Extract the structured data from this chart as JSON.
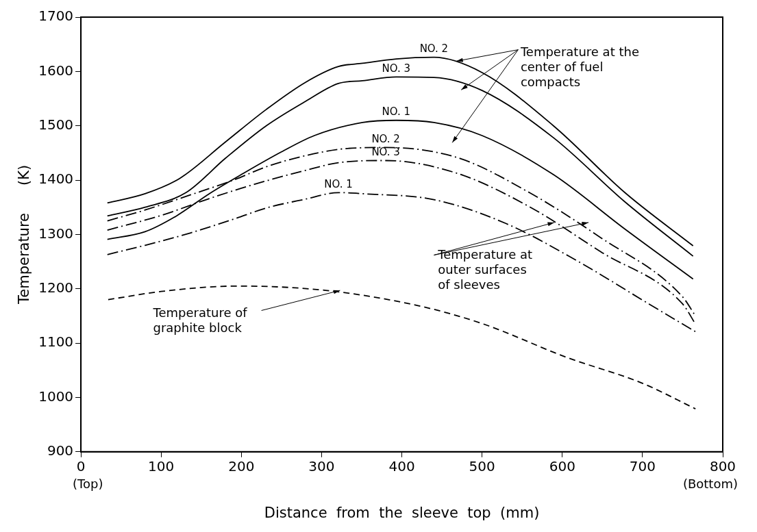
{
  "chart_data": {
    "type": "line",
    "xlabel": "Distance  from  the  sleeve  top  (mm)",
    "ylabel": "Temperature      (K)",
    "xlim": [
      0,
      800
    ],
    "xticks": [
      0,
      100,
      200,
      300,
      400,
      500,
      600,
      700,
      800
    ],
    "ylim": [
      900,
      1700
    ],
    "yticks": [
      900,
      1000,
      1100,
      1200,
      1300,
      1400,
      1500,
      1600,
      1700
    ],
    "grid": false,
    "legend": false,
    "marker": "none",
    "series": [
      {
        "name": "NO. 2",
        "color": "#000000",
        "line_style": "solid",
        "x": [
          33,
          80,
          123,
          180,
          231,
          280,
          321,
          351,
          393,
          440,
          500,
          589,
          678,
          763
        ],
        "values": [
          1358,
          1375,
          1403,
          1470,
          1530,
          1580,
          1609,
          1615,
          1623,
          1626,
          1598,
          1500,
          1377,
          1279
        ]
      },
      {
        "name": "NO. 3",
        "color": "#000000",
        "line_style": "solid",
        "x": [
          33,
          80,
          131,
          180,
          231,
          280,
          321,
          351,
          393,
          440,
          500,
          589,
          678,
          763
        ],
        "values": [
          1334,
          1350,
          1377,
          1440,
          1500,
          1545,
          1578,
          1583,
          1590,
          1589,
          1565,
          1478,
          1360,
          1260
        ]
      },
      {
        "name": "NO. 1",
        "color": "#000000",
        "line_style": "solid",
        "x": [
          33,
          80,
          119,
          160,
          202,
          250,
          291,
          351,
          393,
          440,
          500,
          589,
          678,
          763
        ],
        "values": [
          1291,
          1305,
          1334,
          1375,
          1412,
          1452,
          1482,
          1506,
          1510,
          1506,
          1482,
          1410,
          1310,
          1218
        ]
      },
      {
        "name": "NO. 2",
        "color": "#000000",
        "line_style": "dashdot",
        "x": [
          33,
          80,
          137,
          190,
          232,
          280,
          330,
          380,
          470,
          559,
          648,
          750,
          766
        ],
        "values": [
          1325,
          1345,
          1373,
          1400,
          1425,
          1445,
          1458,
          1460,
          1441,
          1377,
          1294,
          1185,
          1150
        ]
      },
      {
        "name": "NO. 3",
        "color": "#000000",
        "line_style": "dashdot",
        "x": [
          33,
          100,
          160,
          200,
          232,
          280,
          321,
          380,
          470,
          559,
          648,
          750,
          766
        ],
        "values": [
          1308,
          1335,
          1366,
          1385,
          1399,
          1418,
          1432,
          1436,
          1412,
          1351,
          1268,
          1172,
          1135
        ]
      },
      {
        "name": "NO. 1",
        "color": "#000000",
        "line_style": "dashdot",
        "x": [
          33,
          80,
          137,
          190,
          232,
          280,
          321,
          351,
          440,
          530,
          619,
          708,
          766
        ],
        "values": [
          1263,
          1280,
          1303,
          1328,
          1349,
          1365,
          1377,
          1375,
          1364,
          1320,
          1251,
          1172,
          1121
        ]
      },
      {
        "color": "#000000",
        "line_style": "dashed",
        "x": [
          34,
          100,
          195,
          305,
          420,
          500,
          605,
          700,
          766
        ],
        "values": [
          1180,
          1195,
          1205,
          1197,
          1169,
          1136,
          1074,
          1026,
          979
        ]
      }
    ],
    "annotations": [
      {
        "text": "Temperature at the center of fuel compacts",
        "x": 468,
        "y": 1619
      },
      {
        "text": "Temperature at outer surfaces of sleeves",
        "x": 590,
        "y": 1322
      },
      {
        "text": "Temperature of graphite block",
        "x": 323,
        "y": 1197
      },
      "(Top)",
      "(Bottom)"
    ]
  }
}
